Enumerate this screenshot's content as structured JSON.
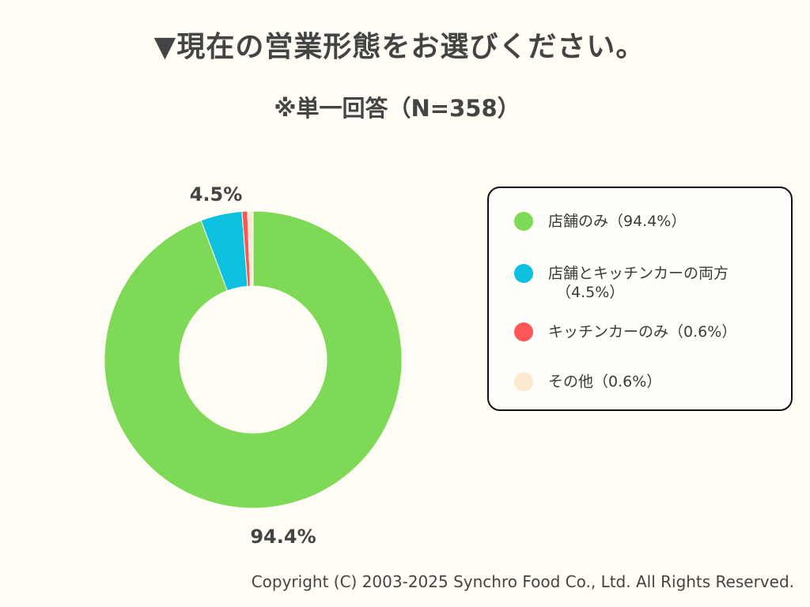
{
  "title": "▼現在の営業形態をお選びください。",
  "subtitle": "※単一回答（N=358）",
  "chart_data": {
    "type": "pie",
    "style": "donut",
    "title": "▼現在の営業形態をお選びください。",
    "subtitle": "※単一回答（N=358）",
    "categories": [
      "店舗のみ",
      "店舗とキッチンカーの両方",
      "キッチンカーのみ",
      "その他"
    ],
    "values": [
      94.4,
      4.5,
      0.6,
      0.6
    ],
    "unit": "%",
    "colors": [
      "#7ed957",
      "#0cc0df",
      "#ff5757",
      "#fde9cf"
    ],
    "data_labels": [
      {
        "index": 0,
        "text": "94.4%"
      },
      {
        "index": 1,
        "text": "4.5%"
      }
    ],
    "legend": {
      "position": "right",
      "items": [
        {
          "line1": "店舗のみ（94.4%）",
          "line2": ""
        },
        {
          "line1": "店舗とキッチンカーの両方",
          "line2": "（4.5%）"
        },
        {
          "line1": "キッチンカーのみ（0.6%）",
          "line2": ""
        },
        {
          "line1": "その他（0.6%）",
          "line2": ""
        }
      ]
    }
  },
  "footer": {
    "copyright": "Copyright (C) 2003-2025  Synchro Food Co., Ltd. All Rights Reserved."
  }
}
